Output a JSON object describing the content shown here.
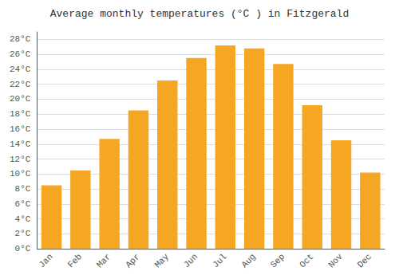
{
  "chart_data": {
    "type": "bar",
    "title": "Average monthly temperatures (°C ) in Fitzgerald",
    "categories": [
      "Jan",
      "Feb",
      "Mar",
      "Apr",
      "May",
      "Jun",
      "Jul",
      "Aug",
      "Sep",
      "Oct",
      "Nov",
      "Dec"
    ],
    "values": [
      8.5,
      10.5,
      14.7,
      18.5,
      22.5,
      25.5,
      27.2,
      26.8,
      24.7,
      19.2,
      14.5,
      10.2
    ],
    "color": "#F5A623",
    "ylim": [
      0,
      29
    ],
    "yticks": [
      {
        "value": 0,
        "label": "0°C"
      },
      {
        "value": 2,
        "label": "2°C"
      },
      {
        "value": 4,
        "label": "4°C"
      },
      {
        "value": 6,
        "label": "6°C"
      },
      {
        "value": 8,
        "label": "8°C"
      },
      {
        "value": 10,
        "label": "10°C"
      },
      {
        "value": 12,
        "label": "12°C"
      },
      {
        "value": 14,
        "label": "14°C"
      },
      {
        "value": 16,
        "label": "16°C"
      },
      {
        "value": 18,
        "label": "18°C"
      },
      {
        "value": 20,
        "label": "20°C"
      },
      {
        "value": 22,
        "label": "22°C"
      },
      {
        "value": 24,
        "label": "24°C"
      },
      {
        "value": 26,
        "label": "26°C"
      },
      {
        "value": 28,
        "label": "28°C"
      }
    ],
    "grid": true
  }
}
